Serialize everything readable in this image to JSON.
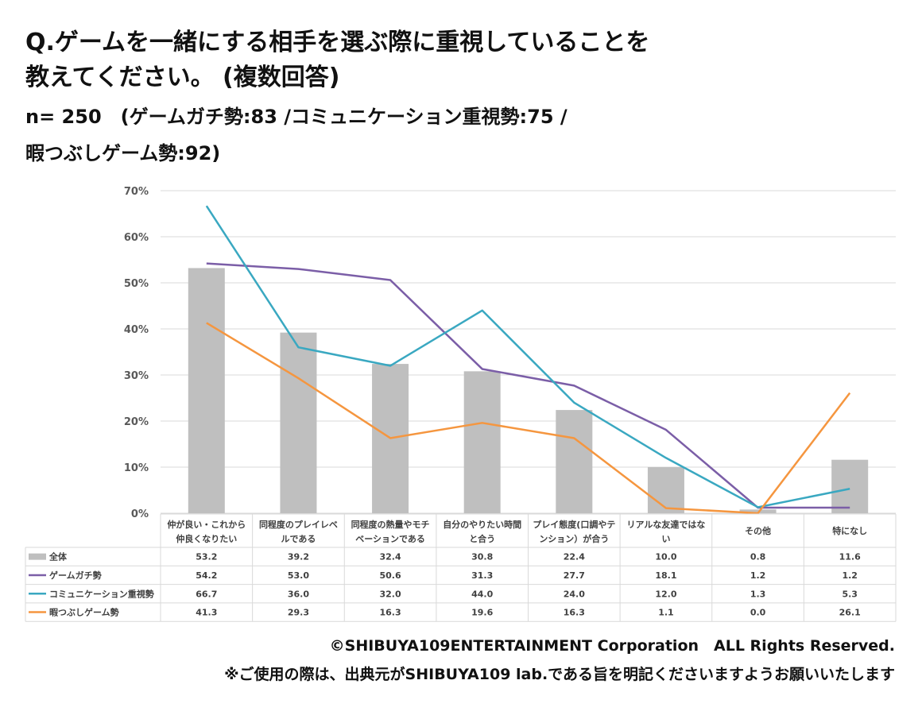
{
  "title_line1": "Q.ゲームを一緒にする相手を選ぶ際に重視していることを",
  "title_line2": "教えてください。 (複数回答)",
  "sample_line1": "n= 250　(ゲームガチ勢:83 /コミュニケーション重視勢:75 /",
  "sample_line2": "暇つぶしゲーム勢:92)",
  "copyright": "©SHIBUYA109ENTERTAINMENT Corporation　ALL Rights Reserved.",
  "notice": "※ご使用の際は、出典元がSHIBUYA109 lab.である旨を明記くださいますようお願いいたします",
  "chart_data": {
    "type": "bar+line",
    "ylim": [
      0,
      70
    ],
    "yticks": [
      "0%",
      "10%",
      "20%",
      "30%",
      "40%",
      "50%",
      "60%",
      "70%"
    ],
    "ytick_values": [
      0,
      10,
      20,
      30,
      40,
      50,
      60,
      70
    ],
    "grid": true,
    "categories": [
      [
        "仲が良い・これから",
        "仲良くなりたい"
      ],
      [
        "同程度のプレイレベ",
        "ルである"
      ],
      [
        "同程度の熱量やモチ",
        "ベーションである"
      ],
      [
        "自分のやりたい時間",
        "と合う"
      ],
      [
        "プレイ態度(口調やテ",
        "ンション）が合う"
      ],
      [
        "リアルな友達ではな",
        "い"
      ],
      [
        "その他"
      ],
      [
        "特になし"
      ]
    ],
    "series": [
      {
        "name": "全体",
        "kind": "bar",
        "color": "#bfbfbf",
        "values": [
          53.2,
          39.2,
          32.4,
          30.8,
          22.4,
          10.0,
          0.8,
          11.6
        ],
        "labels": [
          "53.2",
          "39.2",
          "32.4",
          "30.8",
          "22.4",
          "10.0",
          "0.8",
          "11.6"
        ]
      },
      {
        "name": "ゲームガチ勢",
        "kind": "line",
        "color": "#7b5ea7",
        "values": [
          54.2,
          53.0,
          50.6,
          31.3,
          27.7,
          18.1,
          1.2,
          1.2
        ],
        "labels": [
          "54.2",
          "53.0",
          "50.6",
          "31.3",
          "27.7",
          "18.1",
          "1.2",
          "1.2"
        ]
      },
      {
        "name": "コミュニケーション重視勢",
        "kind": "line",
        "color": "#3aa8c1",
        "values": [
          66.7,
          36.0,
          32.0,
          44.0,
          24.0,
          12.0,
          1.3,
          5.3
        ],
        "labels": [
          "66.7",
          "36.0",
          "32.0",
          "44.0",
          "24.0",
          "12.0",
          "1.3",
          "5.3"
        ]
      },
      {
        "name": "暇つぶしゲーム勢",
        "kind": "line",
        "color": "#f5963f",
        "values": [
          41.3,
          29.3,
          16.3,
          19.6,
          16.3,
          1.1,
          0.0,
          26.1
        ],
        "labels": [
          "41.3",
          "29.3",
          "16.3",
          "19.6",
          "16.3",
          "1.1",
          "0.0",
          "26.1"
        ]
      }
    ]
  }
}
